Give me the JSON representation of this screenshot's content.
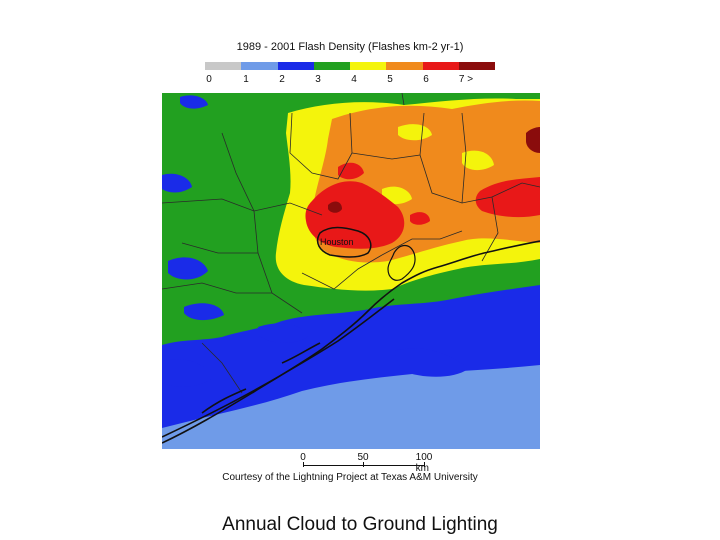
{
  "map_title": "1989 - 2001 Flash Density (Flashes km-2 yr-1)",
  "legend": {
    "labels": [
      "0",
      "1",
      "2",
      "3",
      "4",
      "5",
      "6",
      "7 >"
    ],
    "colors": [
      "#c8c8c8",
      "#6f9be8",
      "#1a2be8",
      "#22a020",
      "#f4f40c",
      "#f08a1c",
      "#e81818",
      "#8a0c0c"
    ]
  },
  "city_label": "Houston",
  "scale_bar": {
    "labels": [
      "0",
      "50",
      "100 km"
    ]
  },
  "credit": "Courtesy of the Lightning Project at Texas A&M University",
  "caption": "Annual Cloud to Ground Lighting"
}
